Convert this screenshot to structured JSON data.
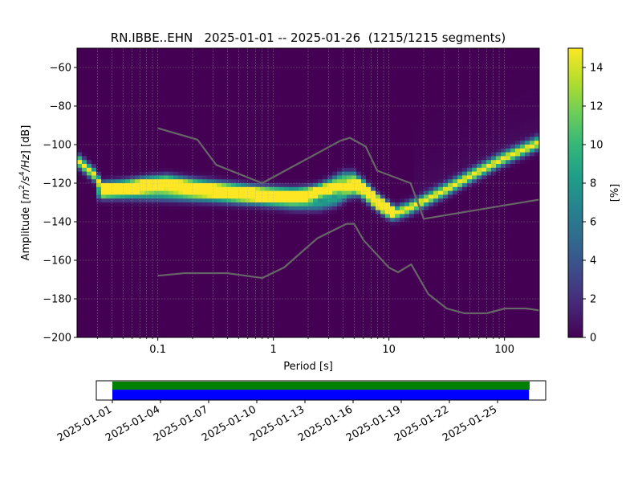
{
  "chart_data": [
    {
      "type": "heatmap",
      "title": "RN.IBBE..EHN   2025-01-01 -- 2025-01-26  (1215/1215 segments)",
      "xlabel": "Period [s]",
      "ylabel": "Amplitude [m²/s⁴/Hz] [dB]",
      "ylabel_parts": {
        "prefix": "Amplitude [",
        "m": "m",
        "sup2": "2",
        "slash_s": "/s",
        "sup4": "4",
        "hz": "/Hz",
        "suffix": "] [dB]"
      },
      "xscale": "log",
      "xlim": [
        0.02,
        200
      ],
      "ylim": [
        -200,
        -50
      ],
      "xticks": [
        {
          "value": 0.1,
          "label": "0.1"
        },
        {
          "value": 1,
          "label": "1"
        },
        {
          "value": 10,
          "label": "10"
        },
        {
          "value": 100,
          "label": "100"
        }
      ],
      "yticks": [
        {
          "value": -60,
          "label": "−60"
        },
        {
          "value": -80,
          "label": "−80"
        },
        {
          "value": -100,
          "label": "−100"
        },
        {
          "value": -120,
          "label": "−120"
        },
        {
          "value": -140,
          "label": "−140"
        },
        {
          "value": -160,
          "label": "−160"
        },
        {
          "value": -180,
          "label": "−180"
        },
        {
          "value": -200,
          "label": "−200"
        }
      ],
      "grid": true,
      "colorbar": {
        "label": "[%]",
        "range": [
          0,
          15
        ],
        "colormap": "viridis",
        "ticks": [
          {
            "value": 0,
            "label": "0"
          },
          {
            "value": 2,
            "label": "2"
          },
          {
            "value": 4,
            "label": "4"
          },
          {
            "value": 6,
            "label": "6"
          },
          {
            "value": 8,
            "label": "8"
          },
          {
            "value": 10,
            "label": "10"
          },
          {
            "value": 12,
            "label": "12"
          },
          {
            "value": 14,
            "label": "14"
          }
        ]
      },
      "density_ridges": [
        {
          "name": "main",
          "points": [
            [
              0.02,
              -108
            ],
            [
              0.03,
              -117
            ],
            [
              0.032,
              -123
            ],
            [
              0.05,
              -122
            ],
            [
              0.08,
              -120
            ],
            [
              0.12,
              -119
            ],
            [
              0.2,
              -121
            ],
            [
              0.4,
              -123
            ],
            [
              0.8,
              -125
            ],
            [
              1.5,
              -126
            ],
            [
              3,
              -124
            ],
            [
              4,
              -122
            ],
            [
              5,
              -121
            ],
            [
              6,
              -123
            ],
            [
              8,
              -130
            ],
            [
              11,
              -136
            ],
            [
              15,
              -133
            ],
            [
              30,
              -124
            ],
            [
              60,
              -114
            ],
            [
              100,
              -107
            ],
            [
              200,
              -99
            ]
          ],
          "peak": 15,
          "sigma_db": 2.2
        },
        {
          "name": "upper",
          "points": [
            [
              0.032,
              -124
            ],
            [
              0.05,
              -123
            ],
            [
              0.1,
              -122
            ],
            [
              0.2,
              -124
            ],
            [
              0.5,
              -126
            ],
            [
              1,
              -127
            ],
            [
              2,
              -127
            ],
            [
              3,
              -121
            ],
            [
              4,
              -117
            ],
            [
              5,
              -117
            ],
            [
              6,
              -121
            ],
            [
              8,
              -129
            ],
            [
              11,
              -135
            ]
          ],
          "peak": 9,
          "sigma_db": 2.2
        },
        {
          "name": "lower",
          "points": [
            [
              0.03,
              -125
            ],
            [
              0.1,
              -126
            ],
            [
              0.3,
              -127
            ],
            [
              0.8,
              -129
            ],
            [
              1.5,
              -131
            ],
            [
              2.5,
              -131
            ],
            [
              3.5,
              -129
            ],
            [
              4.5,
              -125
            ],
            [
              5.5,
              -124
            ],
            [
              7,
              -129
            ],
            [
              10,
              -135
            ]
          ],
          "peak": 8,
          "sigma_db": 2.2
        }
      ],
      "reference_curves": {
        "color": "#666666",
        "high_noise_model": [
          [
            0.1,
            -91.5
          ],
          [
            0.22,
            -97.4
          ],
          [
            0.32,
            -110.5
          ],
          [
            0.8,
            -120
          ],
          [
            3.8,
            -98
          ],
          [
            4.6,
            -96.5
          ],
          [
            6.3,
            -101
          ],
          [
            7.9,
            -113.5
          ],
          [
            15.4,
            -120
          ],
          [
            20,
            -138.5
          ],
          [
            200,
            -128.5
          ]
        ],
        "low_noise_model": [
          [
            0.1,
            -168
          ],
          [
            0.17,
            -166.7
          ],
          [
            0.4,
            -166.7
          ],
          [
            0.8,
            -169.2
          ],
          [
            1.24,
            -163.7
          ],
          [
            2.4,
            -148.6
          ],
          [
            4.3,
            -141.1
          ],
          [
            5.0,
            -141.1
          ],
          [
            6.0,
            -149.4
          ],
          [
            10.0,
            -163.8
          ],
          [
            12.0,
            -166.2
          ],
          [
            15.6,
            -162.1
          ],
          [
            21.9,
            -177.5
          ],
          [
            31.6,
            -185
          ],
          [
            45,
            -187.5
          ],
          [
            70,
            -187.5
          ],
          [
            101,
            -185
          ],
          [
            154,
            -185
          ],
          [
            200,
            -186
          ]
        ]
      }
    },
    {
      "type": "coverage",
      "x_type": "date",
      "xlim": [
        "2024-12-31",
        "2025-01-28"
      ],
      "ticks": [
        "2025-01-01",
        "2025-01-04",
        "2025-01-07",
        "2025-01-10",
        "2025-01-13",
        "2025-01-16",
        "2025-01-19",
        "2025-01-22",
        "2025-01-25"
      ],
      "series": [
        {
          "color": "#008000",
          "start": "2025-01-01",
          "end": "2025-01-26T23:59"
        },
        {
          "color": "#0000ff",
          "start": "2025-01-01",
          "end": "2025-01-26T23:00"
        }
      ]
    }
  ]
}
